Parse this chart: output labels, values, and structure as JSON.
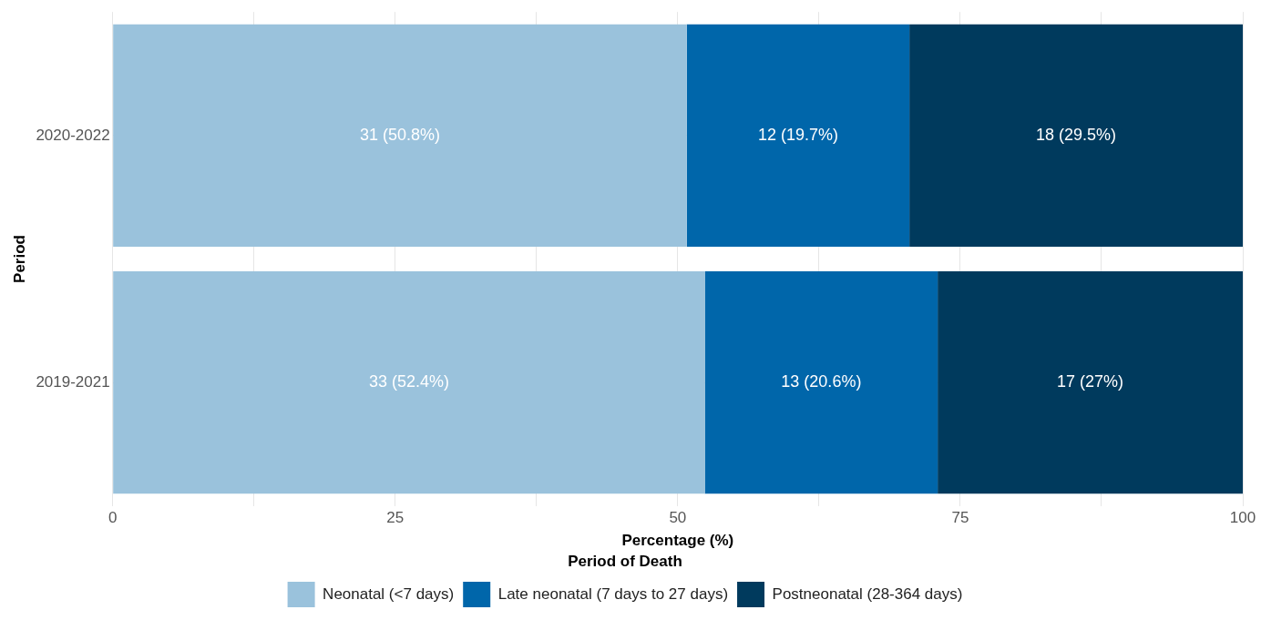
{
  "chart_data": {
    "type": "bar",
    "orientation": "horizontal",
    "stacked": true,
    "categories": [
      "2020-2022",
      "2019-2021"
    ],
    "series": [
      {
        "name": "Neonatal (<7 days)",
        "color": "#9ac2dc",
        "values": [
          50.8,
          52.4
        ],
        "value_labels": [
          "31 (50.8%)",
          "33 (52.4%)"
        ]
      },
      {
        "name": "Late neonatal (7 days to 27 days)",
        "color": "#0066aa",
        "values": [
          19.7,
          20.6
        ],
        "value_labels": [
          "12 (19.7%)",
          "13 (20.6%)"
        ]
      },
      {
        "name": "Postneonatal (28-364 days)",
        "color": "#003a5d",
        "values": [
          29.5,
          27
        ],
        "value_labels": [
          "18 (29.5%)",
          "17 (27%)"
        ]
      }
    ],
    "xlim": [
      0,
      100
    ],
    "xticks": [
      0,
      {
        "value": 12.5,
        "label": null
      },
      25,
      {
        "value": 37.5,
        "label": null
      },
      50,
      {
        "value": 62.5,
        "label": null
      },
      75,
      {
        "value": 87.5,
        "label": null
      },
      100
    ],
    "xlabel": "Percentage (%)",
    "ylabel": "Period",
    "legend_title": "Period of Death",
    "legend": "bottom",
    "grid": true
  }
}
